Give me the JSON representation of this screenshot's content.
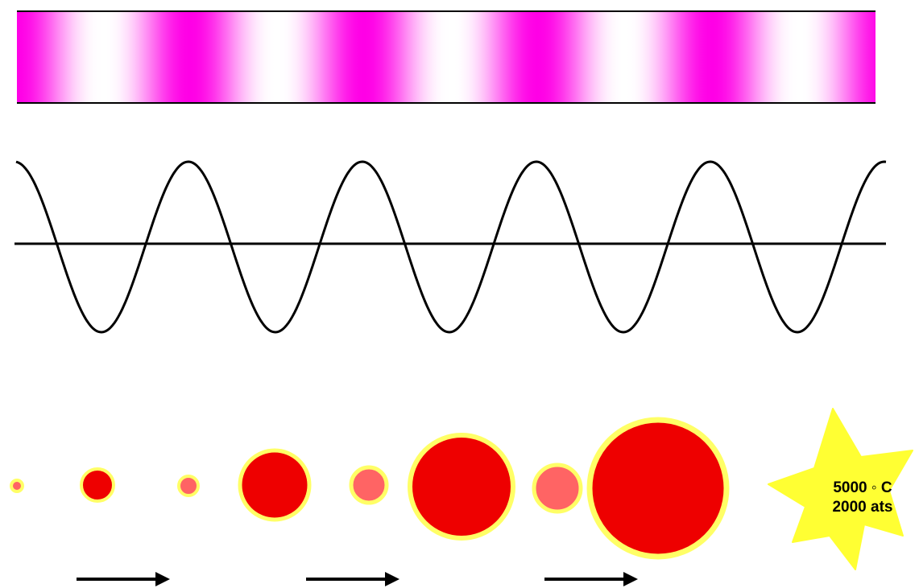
{
  "colors": {
    "band_dense": "#ff00e6",
    "band_light": "#ffffff",
    "wave_line": "#000000",
    "bubble_light_fill": "#ff6464",
    "bubble_dark_fill": "#ee0000",
    "bubble_rim": "#ffff66",
    "star_fill": "#ffff33",
    "arrow": "#000000"
  },
  "wave": {
    "cycles": 5
  },
  "bubbles": [
    {
      "kind": "small-dark"
    },
    {
      "kind": "large-light"
    },
    {
      "kind": "small-dark"
    },
    {
      "kind": "large-light"
    },
    {
      "kind": "small-dark"
    },
    {
      "kind": "large-light"
    },
    {
      "kind": "small-dark"
    },
    {
      "kind": "large-light"
    }
  ],
  "star": {
    "line1": "5000 ◦ C",
    "line2": "2000 ats"
  }
}
